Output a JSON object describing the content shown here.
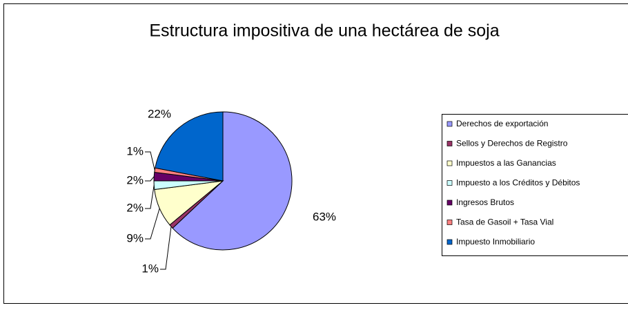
{
  "chart_data": {
    "type": "pie",
    "title": "Estructura impositiva de una hectárea de soja",
    "categories": [
      "Derechos de exportación",
      "Sellos y Derechos de Registro",
      "Impuestos a las Ganancias",
      "Impuesto a los Créditos y Débitos",
      "Ingresos Brutos",
      "Tasa de Gasoil + Tasa Vial",
      "Impuesto Inmobiliario"
    ],
    "values": [
      63,
      1,
      9,
      2,
      2,
      1,
      22
    ],
    "value_labels": [
      "63%",
      "1%",
      "9%",
      "2%",
      "2%",
      "1%",
      "22%"
    ],
    "colors": [
      "#9999ff",
      "#993366",
      "#ffffcc",
      "#ccffff",
      "#660066",
      "#ff8080",
      "#0066cc"
    ],
    "legend": "right"
  }
}
